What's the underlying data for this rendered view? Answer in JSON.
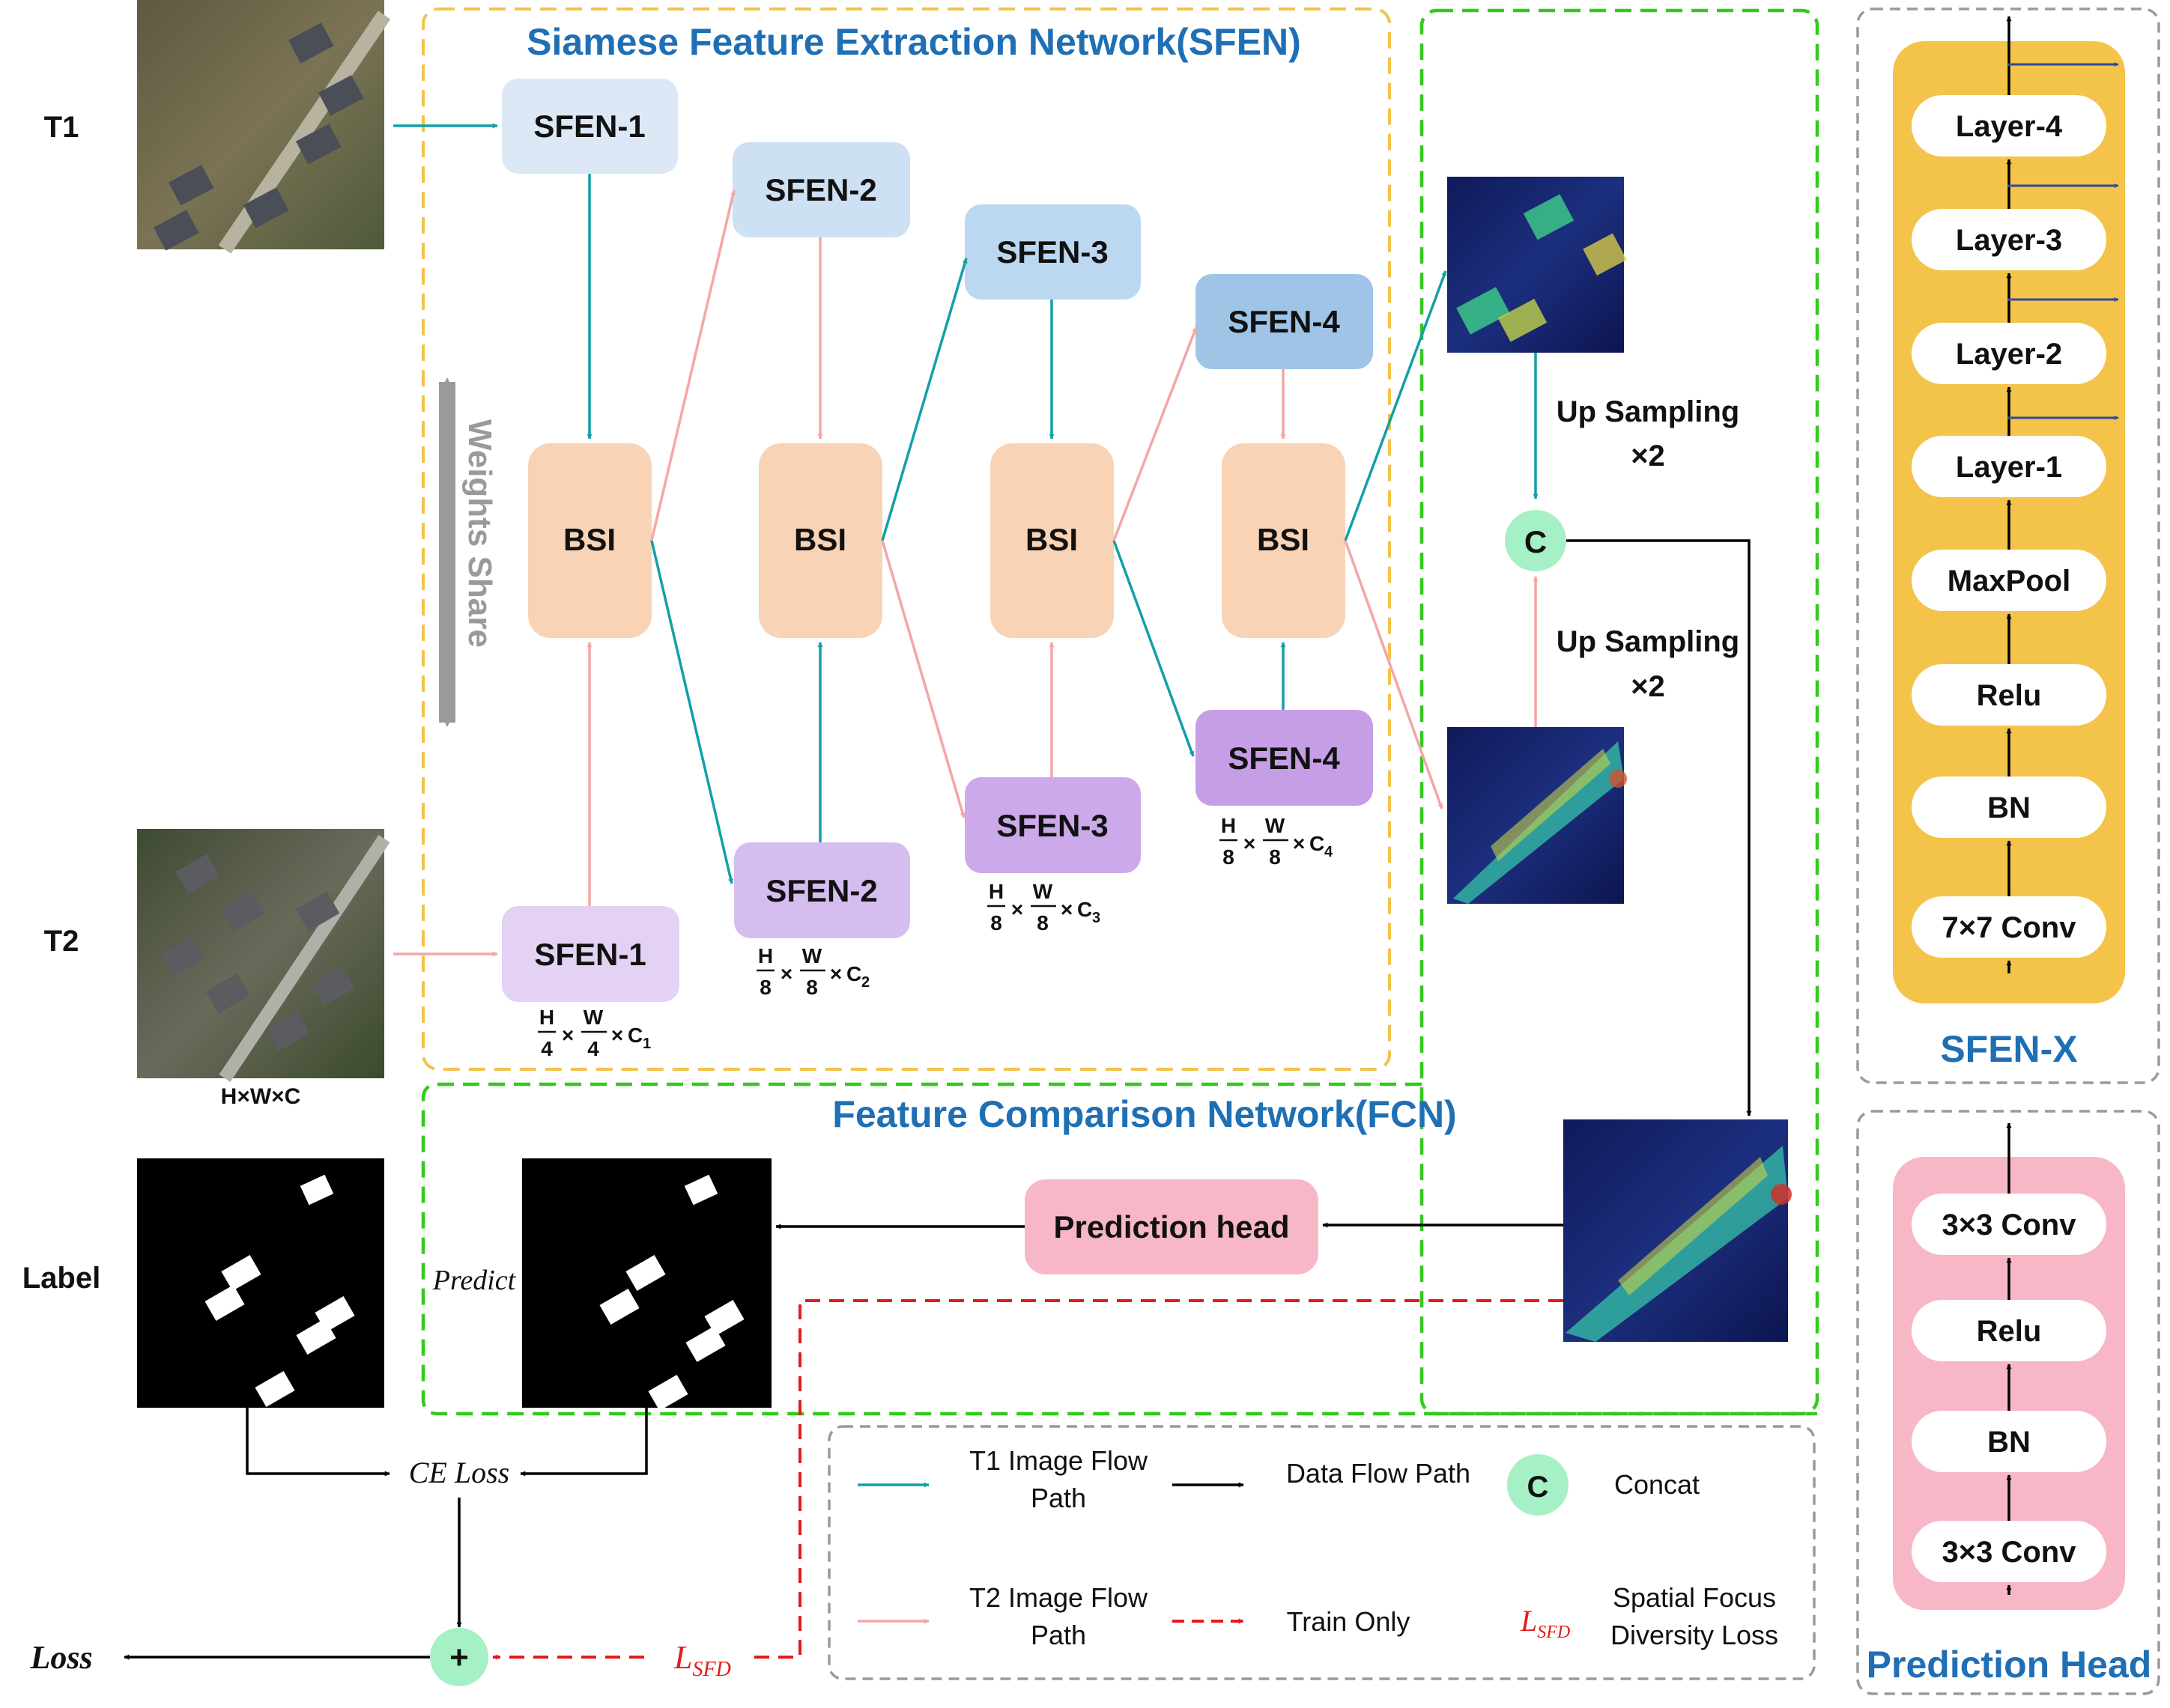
{
  "inputs": {
    "t1_label": "T1",
    "t2_label": "T2",
    "label_label": "Label",
    "input_dim": "H×W×C"
  },
  "sfen": {
    "title": "Siamese Feature Extraction Network(SFEN)",
    "weights_share": "Weights  Share",
    "top_blocks": [
      "SFEN-1",
      "SFEN-2",
      "SFEN-3",
      "SFEN-4"
    ],
    "bottom_blocks": [
      "SFEN-1",
      "SFEN-2",
      "SFEN-3",
      "SFEN-4"
    ],
    "bsi_label": "BSI",
    "dims": [
      {
        "h": "H",
        "hd": "4",
        "w": "W",
        "wd": "4",
        "c": "C",
        "ci": "1"
      },
      {
        "h": "H",
        "hd": "8",
        "w": "W",
        "wd": "8",
        "c": "C",
        "ci": "2"
      },
      {
        "h": "H",
        "hd": "8",
        "w": "W",
        "wd": "8",
        "c": "C",
        "ci": "3"
      },
      {
        "h": "H",
        "hd": "8",
        "w": "W",
        "wd": "8",
        "c": "C",
        "ci": "4"
      }
    ]
  },
  "upsampling": {
    "label_1": "Up Sampling",
    "factor_1": "×2",
    "label_2": "Up Sampling",
    "factor_2": "×2",
    "concat_symbol": "C"
  },
  "fcn": {
    "title": "Feature Comparison Network(FCN)",
    "prediction_head": "Prediction head",
    "predict_label": "Predict"
  },
  "loss": {
    "ce_loss": "CE Loss",
    "plus": "+",
    "loss_label": "Loss",
    "lsfd_main": "L",
    "lsfd_sub": "SFD"
  },
  "legend": {
    "t1_path_line1": "T1 Image Flow",
    "t1_path_line2": "Path",
    "t2_path_line1": "T2 Image Flow",
    "t2_path_line2": "Path",
    "data_flow": "Data Flow Path",
    "train_only": "Train Only",
    "concat_symbol": "C",
    "concat": "Concat",
    "lsfd_main": "L",
    "lsfd_sub": "SFD",
    "sfd_line1": "Spatial Focus",
    "sfd_line2": "Diversity Loss"
  },
  "sfen_x": {
    "layers": [
      "Layer-4",
      "Layer-3",
      "Layer-2",
      "Layer-1",
      "MaxPool",
      "Relu",
      "BN",
      "7×7 Conv"
    ],
    "title": "SFEN-X"
  },
  "pred_head_panel": {
    "layers": [
      "3×3 Conv",
      "Relu",
      "BN",
      "3×3 Conv"
    ],
    "title": "Prediction Head"
  },
  "colors": {
    "t1_flow": "#12a0a8",
    "t2_flow": "#f4a6a6",
    "sfen_box": "#f3c34a",
    "fcn_box": "#35c91f",
    "bsi": "#f8d3b6",
    "title_blue": "#1f6fb5",
    "concat": "#a6f0c6",
    "prediction": "#f7b7c7",
    "train_only": "#e31b1b"
  }
}
